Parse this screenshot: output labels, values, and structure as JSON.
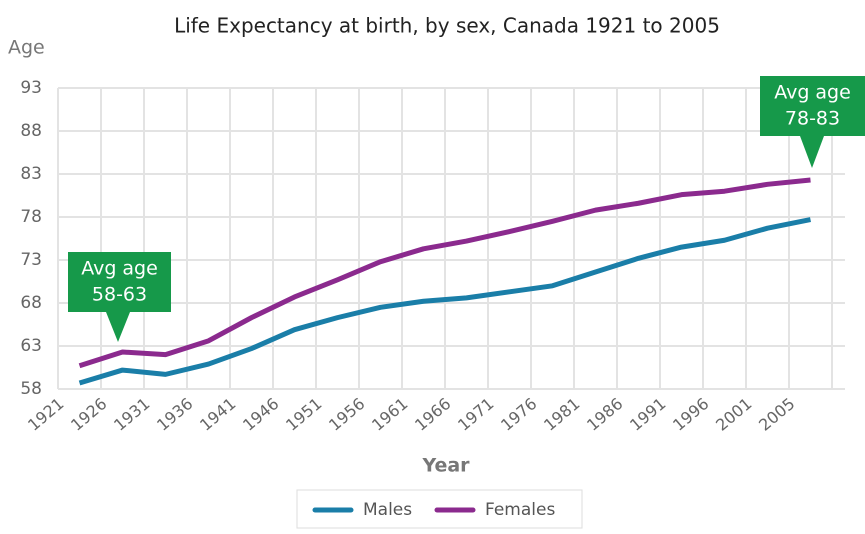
{
  "chart_data": {
    "type": "line",
    "title": "Life Expectancy at birth, by sex, Canada 1921 to 2005",
    "y_label": "Age",
    "x_label": "Year",
    "categories": [
      "1921",
      "1926",
      "1931",
      "1936",
      "1941",
      "1946",
      "1951",
      "1956",
      "1961",
      "1966",
      "1971",
      "1976",
      "1981",
      "1986",
      "1991",
      "1996",
      "2001",
      "2005"
    ],
    "series": [
      {
        "name": "Males",
        "color": "#1a7ea8",
        "values": [
          58.7,
          60.2,
          59.7,
          60.9,
          62.7,
          64.9,
          66.3,
          67.5,
          68.2,
          68.6,
          69.3,
          70.0,
          71.6,
          73.2,
          74.5,
          75.3,
          76.7,
          77.7
        ]
      },
      {
        "name": "Females",
        "color": "#8b2a8e",
        "values": [
          60.7,
          62.3,
          62.0,
          63.6,
          66.3,
          68.7,
          70.7,
          72.8,
          74.3,
          75.2,
          76.3,
          77.5,
          78.8,
          79.6,
          80.6,
          81.0,
          81.8,
          82.3
        ]
      }
    ],
    "ylim": [
      58,
      93
    ],
    "yticks": [
      58,
      63,
      68,
      73,
      78,
      83,
      88,
      93
    ],
    "grid": true,
    "legend": "bottom",
    "annotations": [
      {
        "lines": [
          "Avg age",
          "58-63"
        ],
        "color": "#16994a"
      },
      {
        "lines": [
          "Avg age",
          "78-83"
        ],
        "color": "#16994a"
      }
    ]
  }
}
